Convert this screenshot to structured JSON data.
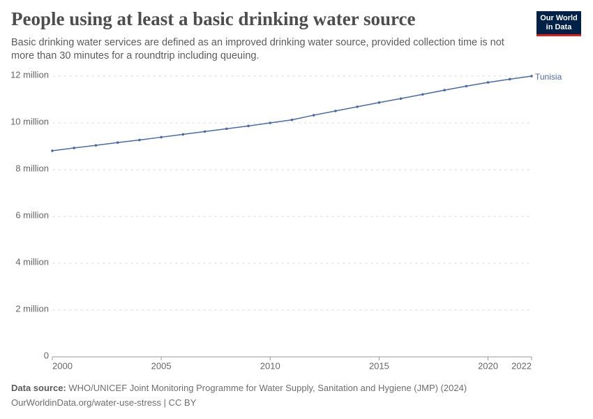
{
  "chart_data": {
    "type": "line",
    "title": "People using at least a basic drinking water source",
    "subtitle": "Basic drinking water services are defined as an improved drinking water source, provided collection time is not more than 30 minutes for a roundtrip including queuing.",
    "logo": [
      "Our World",
      "in Data"
    ],
    "source_label": "Data source:",
    "source": "WHO/UNICEF Joint Monitoring Programme for Water Supply, Sanitation and Hygiene (JMP) (2024)",
    "footer": "OurWorldinData.org/water-use-stress | CC BY",
    "x": [
      2000,
      2001,
      2002,
      2003,
      2004,
      2005,
      2006,
      2007,
      2008,
      2009,
      2010,
      2011,
      2012,
      2013,
      2014,
      2015,
      2016,
      2017,
      2018,
      2019,
      2020,
      2021,
      2022
    ],
    "series": [
      {
        "name": "Tunisia",
        "color": "#4c6a9c",
        "values": [
          8810000,
          8930000,
          9040000,
          9160000,
          9270000,
          9390000,
          9510000,
          9630000,
          9750000,
          9870000,
          10000000,
          10130000,
          10330000,
          10510000,
          10690000,
          10870000,
          11040000,
          11220000,
          11400000,
          11570000,
          11730000,
          11870000,
          12000000
        ]
      }
    ],
    "xlim": [
      2000,
      2022
    ],
    "xticks": [
      2000,
      2005,
      2010,
      2015,
      2020,
      2022
    ],
    "ylim": [
      0,
      12000000
    ],
    "yticks": [
      0,
      {
        "value": 2000000,
        "label": "2 million"
      },
      {
        "value": 4000000,
        "label": "4 million"
      },
      {
        "value": 6000000,
        "label": "6 million"
      },
      {
        "value": 8000000,
        "label": "8 million"
      },
      {
        "value": 10000000,
        "label": "10 million"
      },
      {
        "value": 12000000,
        "label": "12 million"
      }
    ],
    "grid": true
  }
}
